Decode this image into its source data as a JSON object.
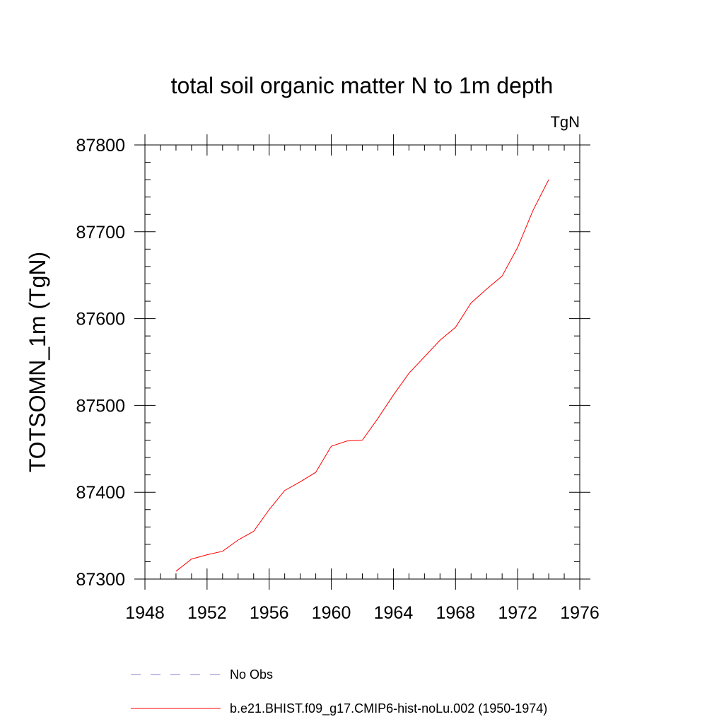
{
  "chart_data": {
    "type": "line",
    "title": "total soil organic matter N to 1m depth",
    "units_label": "TgN",
    "ylabel": "TOTSOMN_1m  (TgN)",
    "xlabel": "",
    "xlim": [
      1948,
      1976
    ],
    "ylim": [
      87300,
      87800
    ],
    "x_ticks": [
      1948,
      1952,
      1956,
      1960,
      1964,
      1968,
      1972,
      1976
    ],
    "y_ticks": [
      87300,
      87400,
      87500,
      87600,
      87700,
      87800
    ],
    "grid": false,
    "legend_position": "bottom",
    "series": [
      {
        "name": "b.e21.BHIST.f09_g17.CMIP6-hist-noLu.002 (1950-1974)",
        "color": "#ff0000",
        "style": "solid",
        "x": [
          1950,
          1951,
          1952,
          1953,
          1954,
          1955,
          1956,
          1957,
          1958,
          1959,
          1960,
          1961,
          1962,
          1963,
          1964,
          1965,
          1966,
          1967,
          1968,
          1969,
          1970,
          1971,
          1972,
          1973,
          1974
        ],
        "y": [
          87309,
          87323,
          87328,
          87332,
          87345,
          87355,
          87380,
          87402,
          87412,
          87423,
          87453,
          87459,
          87460,
          87485,
          87512,
          87537,
          87556,
          87575,
          87590,
          87618,
          87634,
          87649,
          87682,
          87725,
          87760
        ]
      }
    ],
    "legend": [
      {
        "label": "No Obs",
        "color": "#8a7fd6",
        "style": "dashed"
      },
      {
        "label": "b.e21.BHIST.f09_g17.CMIP6-hist-noLu.002 (1950-1974)",
        "color": "#ff0000",
        "style": "solid"
      }
    ]
  }
}
